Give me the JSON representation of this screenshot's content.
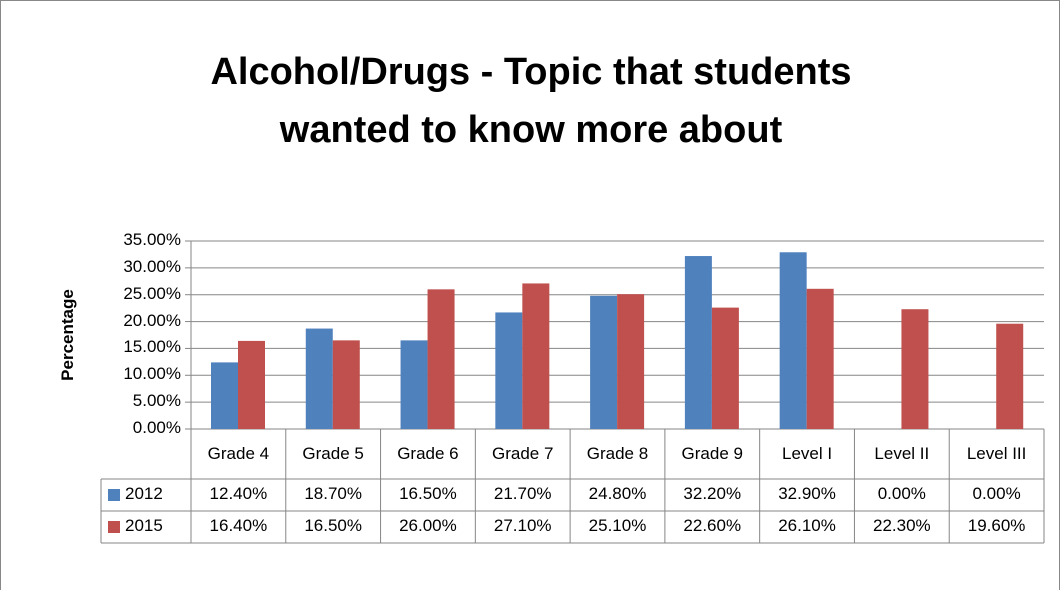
{
  "chart_data": {
    "type": "bar",
    "title": "Alcohol/Drugs - Topic that students wanted to know more about",
    "y_label": "Percentage",
    "categories": [
      "Grade 4",
      "Grade 5",
      "Grade 6",
      "Grade 7",
      "Grade 8",
      "Grade 9",
      "Level I",
      "Level II",
      "Level III"
    ],
    "series": [
      {
        "name": "2012",
        "color": "#4f81bd",
        "values": [
          12.4,
          18.7,
          16.5,
          21.7,
          24.8,
          32.2,
          32.9,
          0,
          0
        ],
        "value_labels": [
          "12.40%",
          "18.70%",
          "16.50%",
          "21.70%",
          "24.80%",
          "32.20%",
          "32.90%",
          "0.00%",
          "0.00%"
        ]
      },
      {
        "name": "2015",
        "color": "#c0504d",
        "values": [
          16.4,
          16.5,
          26.0,
          27.1,
          25.1,
          22.6,
          26.1,
          22.3,
          19.6
        ],
        "value_labels": [
          "16.40%",
          "16.50%",
          "26.00%",
          "27.10%",
          "25.10%",
          "22.60%",
          "26.10%",
          "22.30%",
          "19.60%"
        ]
      }
    ],
    "ylim": [
      0,
      35
    ],
    "yticks": [
      {
        "value": 0,
        "label": "0.00%"
      },
      {
        "value": 5,
        "label": "5.00%"
      },
      {
        "value": 10,
        "label": "10.00%"
      },
      {
        "value": 15,
        "label": "15.00%"
      },
      {
        "value": 20,
        "label": "20.00%"
      },
      {
        "value": 25,
        "label": "25.00%"
      },
      {
        "value": 30,
        "label": "30.00%"
      },
      {
        "value": 35,
        "label": "35.00%"
      }
    ],
    "grid": true,
    "data_table": true
  }
}
